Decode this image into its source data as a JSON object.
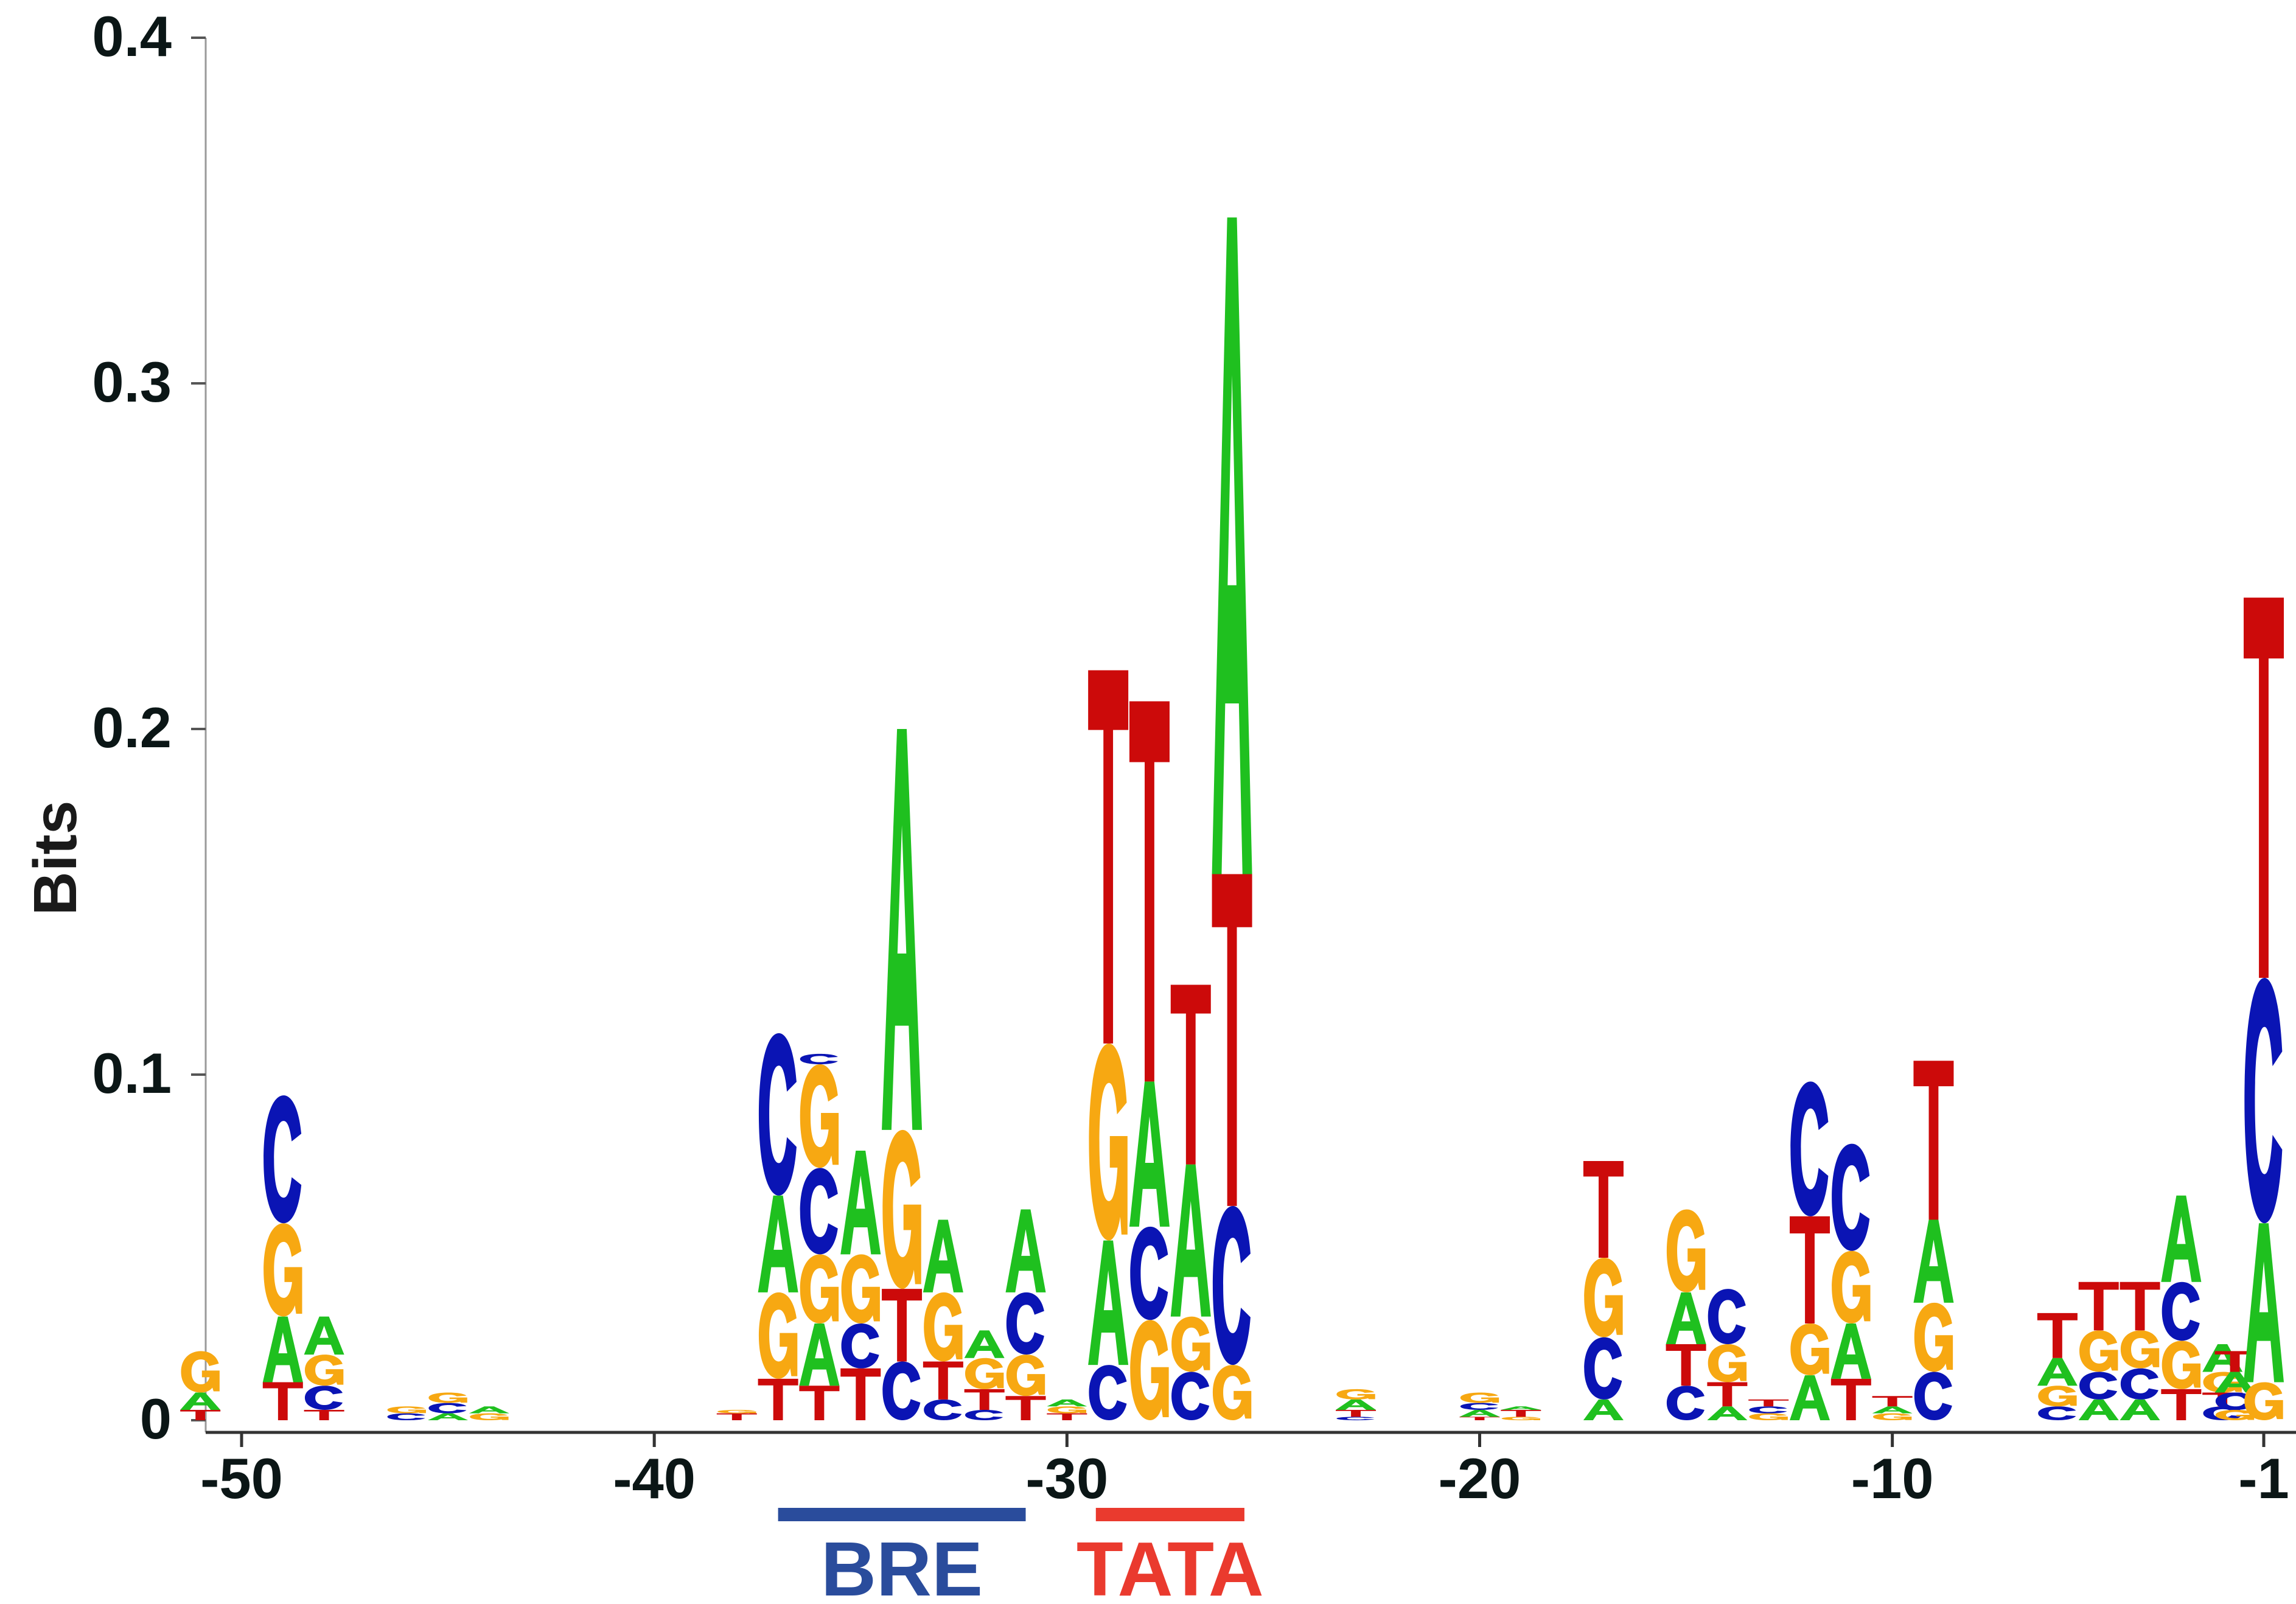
{
  "chart_data": {
    "type": "sequence-logo",
    "ylabel": "Bits",
    "ylim": [
      0,
      0.4
    ],
    "yticks": [
      "0",
      "0.1",
      "0.2",
      "0.3",
      "0.4"
    ],
    "xlim": [
      -50,
      -1
    ],
    "xticks": [
      "-50",
      "-40",
      "-30",
      "-20",
      "-10",
      "-1"
    ],
    "colors": {
      "A": "#1fc01f",
      "C": "#0a14b4",
      "G": "#f7a812",
      "T": "#cc0a0a"
    },
    "positions": [
      {
        "pos": -51,
        "stack": [
          [
            "T",
            0.003
          ],
          [
            "A",
            0.005
          ],
          [
            "G",
            0.012
          ]
        ]
      },
      {
        "pos": -49,
        "stack": [
          [
            "T",
            0.011
          ],
          [
            "A",
            0.019
          ],
          [
            "G",
            0.027
          ],
          [
            "C",
            0.037
          ]
        ]
      },
      {
        "pos": -48,
        "stack": [
          [
            "T",
            0.003
          ],
          [
            "C",
            0.007
          ],
          [
            "G",
            0.009
          ],
          [
            "A",
            0.011
          ]
        ]
      },
      {
        "pos": -46,
        "stack": [
          [
            "C",
            0.002
          ],
          [
            "G",
            0.002
          ]
        ]
      },
      {
        "pos": -45,
        "stack": [
          [
            "A",
            0.002
          ],
          [
            "C",
            0.003
          ],
          [
            "G",
            0.003
          ]
        ]
      },
      {
        "pos": -44,
        "stack": [
          [
            "G",
            0.002
          ],
          [
            "A",
            0.002
          ]
        ]
      },
      {
        "pos": -38,
        "stack": [
          [
            "T",
            0.002
          ],
          [
            "G",
            0.001
          ]
        ]
      },
      {
        "pos": -37,
        "stack": [
          [
            "T",
            0.012
          ],
          [
            "G",
            0.025
          ],
          [
            "A",
            0.028
          ],
          [
            "C",
            0.047
          ]
        ]
      },
      {
        "pos": -36,
        "stack": [
          [
            "T",
            0.01
          ],
          [
            "A",
            0.018
          ],
          [
            "G",
            0.02
          ],
          [
            "C",
            0.025
          ],
          [
            "G",
            0.03
          ],
          [
            "C",
            0.003
          ]
        ]
      },
      {
        "pos": -35,
        "stack": [
          [
            "T",
            0.015
          ],
          [
            "C",
            0.013
          ],
          [
            "G",
            0.02
          ],
          [
            "A",
            0.03
          ]
        ]
      },
      {
        "pos": -34,
        "stack": [
          [
            "C",
            0.017
          ],
          [
            "T",
            0.021
          ],
          [
            "G",
            0.046
          ],
          [
            "A",
            0.116
          ]
        ]
      },
      {
        "pos": -33,
        "stack": [
          [
            "C",
            0.006
          ],
          [
            "T",
            0.011
          ],
          [
            "G",
            0.02
          ],
          [
            "A",
            0.021
          ]
        ]
      },
      {
        "pos": -32,
        "stack": [
          [
            "C",
            0.003
          ],
          [
            "T",
            0.006
          ],
          [
            "G",
            0.009
          ],
          [
            "A",
            0.008
          ]
        ]
      },
      {
        "pos": -31,
        "stack": [
          [
            "T",
            0.007
          ],
          [
            "G",
            0.012
          ],
          [
            "C",
            0.018
          ],
          [
            "A",
            0.024
          ]
        ]
      },
      {
        "pos": -30,
        "stack": [
          [
            "T",
            0.002
          ],
          [
            "G",
            0.002
          ],
          [
            "A",
            0.002
          ]
        ]
      },
      {
        "pos": -29,
        "stack": [
          [
            "C",
            0.016
          ],
          [
            "A",
            0.036
          ],
          [
            "G",
            0.057
          ],
          [
            "T",
            0.108
          ]
        ]
      },
      {
        "pos": -28,
        "stack": [
          [
            "G",
            0.029
          ],
          [
            "C",
            0.027
          ],
          [
            "A",
            0.042
          ],
          [
            "T",
            0.11
          ]
        ]
      },
      {
        "pos": -27,
        "stack": [
          [
            "C",
            0.014
          ],
          [
            "G",
            0.016
          ],
          [
            "A",
            0.044
          ],
          [
            "T",
            0.052
          ]
        ]
      },
      {
        "pos": -26,
        "stack": [
          [
            "G",
            0.016
          ],
          [
            "C",
            0.046
          ],
          [
            "T",
            0.096
          ],
          [
            "A",
            0.19
          ]
        ]
      },
      {
        "pos": -23,
        "stack": [
          [
            "C",
            0.001
          ],
          [
            "T",
            0.002
          ],
          [
            "A",
            0.003
          ],
          [
            "G",
            0.003
          ]
        ]
      },
      {
        "pos": -20,
        "stack": [
          [
            "T",
            0.001
          ],
          [
            "A",
            0.002
          ],
          [
            "C",
            0.002
          ],
          [
            "G",
            0.003
          ]
        ]
      },
      {
        "pos": -19,
        "stack": [
          [
            "G",
            0.001
          ],
          [
            "T",
            0.002
          ],
          [
            "A",
            0.001
          ]
        ]
      },
      {
        "pos": -17,
        "stack": [
          [
            "A",
            0.006
          ],
          [
            "C",
            0.018
          ],
          [
            "G",
            0.023
          ],
          [
            "T",
            0.028
          ]
        ]
      },
      {
        "pos": -15,
        "stack": [
          [
            "C",
            0.01
          ],
          [
            "T",
            0.012
          ],
          [
            "A",
            0.015
          ],
          [
            "G",
            0.024
          ]
        ]
      },
      {
        "pos": -14,
        "stack": [
          [
            "A",
            0.004
          ],
          [
            "T",
            0.007
          ],
          [
            "G",
            0.011
          ],
          [
            "C",
            0.016
          ]
        ]
      },
      {
        "pos": -13,
        "stack": [
          [
            "G",
            0.002
          ],
          [
            "C",
            0.002
          ],
          [
            "T",
            0.002
          ]
        ]
      },
      {
        "pos": -12,
        "stack": [
          [
            "A",
            0.013
          ],
          [
            "G",
            0.015
          ],
          [
            "T",
            0.031
          ],
          [
            "C",
            0.039
          ]
        ]
      },
      {
        "pos": -11,
        "stack": [
          [
            "T",
            0.012
          ],
          [
            "A",
            0.016
          ],
          [
            "G",
            0.021
          ],
          [
            "C",
            0.031
          ]
        ]
      },
      {
        "pos": -10,
        "stack": [
          [
            "G",
            0.002
          ],
          [
            "A",
            0.002
          ],
          [
            "T",
            0.003
          ]
        ]
      },
      {
        "pos": -9,
        "stack": [
          [
            "C",
            0.014
          ],
          [
            "G",
            0.02
          ],
          [
            "A",
            0.024
          ],
          [
            "T",
            0.046
          ]
        ]
      },
      {
        "pos": -6,
        "stack": [
          [
            "C",
            0.004
          ],
          [
            "G",
            0.006
          ],
          [
            "A",
            0.008
          ],
          [
            "T",
            0.013
          ]
        ]
      },
      {
        "pos": -5,
        "stack": [
          [
            "A",
            0.006
          ],
          [
            "C",
            0.008
          ],
          [
            "G",
            0.012
          ],
          [
            "T",
            0.014
          ]
        ]
      },
      {
        "pos": -4,
        "stack": [
          [
            "A",
            0.006
          ],
          [
            "C",
            0.009
          ],
          [
            "G",
            0.011
          ],
          [
            "T",
            0.014
          ]
        ]
      },
      {
        "pos": -3,
        "stack": [
          [
            "T",
            0.009
          ],
          [
            "G",
            0.014
          ],
          [
            "C",
            0.017
          ],
          [
            "A",
            0.025
          ]
        ]
      },
      {
        "pos": -2,
        "stack": [
          [
            "C",
            0.004
          ],
          [
            "T",
            0.004
          ],
          [
            "G",
            0.006
          ],
          [
            "A",
            0.008
          ]
        ]
      },
      {
        "pos": -1.7,
        "stack": [
          [
            "G",
            0.003
          ],
          [
            "C",
            0.005
          ],
          [
            "A",
            0.006
          ],
          [
            "T",
            0.006
          ]
        ]
      },
      {
        "pos": -1,
        "stack": [
          [
            "G",
            0.011
          ],
          [
            "A",
            0.046
          ],
          [
            "C",
            0.071
          ],
          [
            "T",
            0.11
          ]
        ]
      }
    ],
    "regions": [
      {
        "label": "BRE",
        "from": -37,
        "to": -31,
        "color": "#2a4c9c"
      },
      {
        "label": "TATA",
        "from": -29.3,
        "to": -25.7,
        "color": "#ea3a2e"
      }
    ]
  }
}
